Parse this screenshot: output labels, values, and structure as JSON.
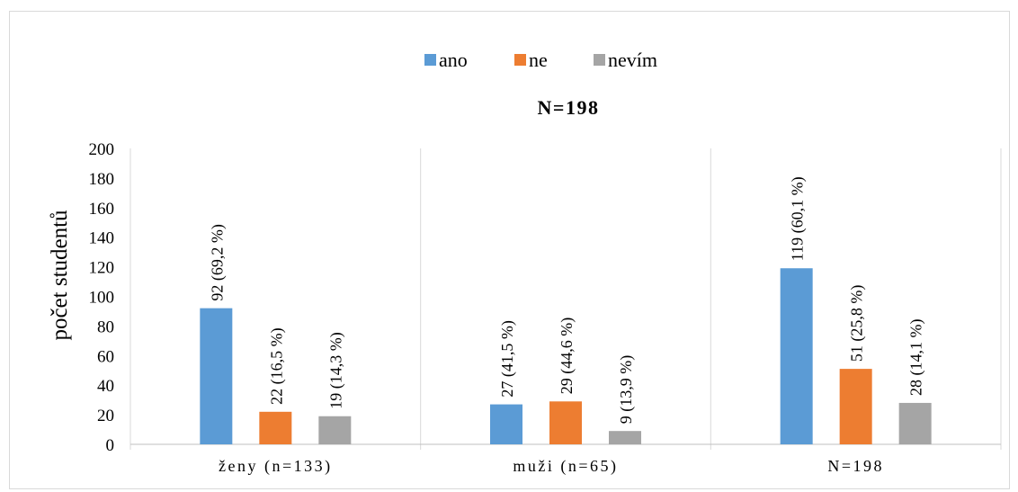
{
  "chart_data": {
    "type": "bar",
    "title": "N=198",
    "ylabel": "počet studentů",
    "xlabel": "",
    "ylim": [
      0,
      200
    ],
    "yticks": [
      "0",
      "20",
      "40",
      "60",
      "80",
      "100",
      "120",
      "140",
      "160",
      "180",
      "200"
    ],
    "categories": [
      "ženy (n=133)",
      "muži (n=65)",
      "N=198"
    ],
    "legend_position": "top",
    "grid": false,
    "series": [
      {
        "name": "ano",
        "color": "#5b9bd5",
        "values": [
          92,
          27,
          119
        ],
        "labels": [
          "92 (69,2 %)",
          "27 (41,5 %)",
          "119 (60,1 %)"
        ]
      },
      {
        "name": "ne",
        "color": "#ed7d31",
        "values": [
          22,
          29,
          51
        ],
        "labels": [
          "22 (16,5 %)",
          "29 (44,6 %)",
          "51 (25,8 %)"
        ]
      },
      {
        "name": "nevím",
        "color": "#a5a5a5",
        "values": [
          19,
          9,
          28
        ],
        "labels": [
          "19 (14,3 %)",
          "9 (13,9 %)",
          "28 (14,1 %)"
        ]
      }
    ]
  }
}
